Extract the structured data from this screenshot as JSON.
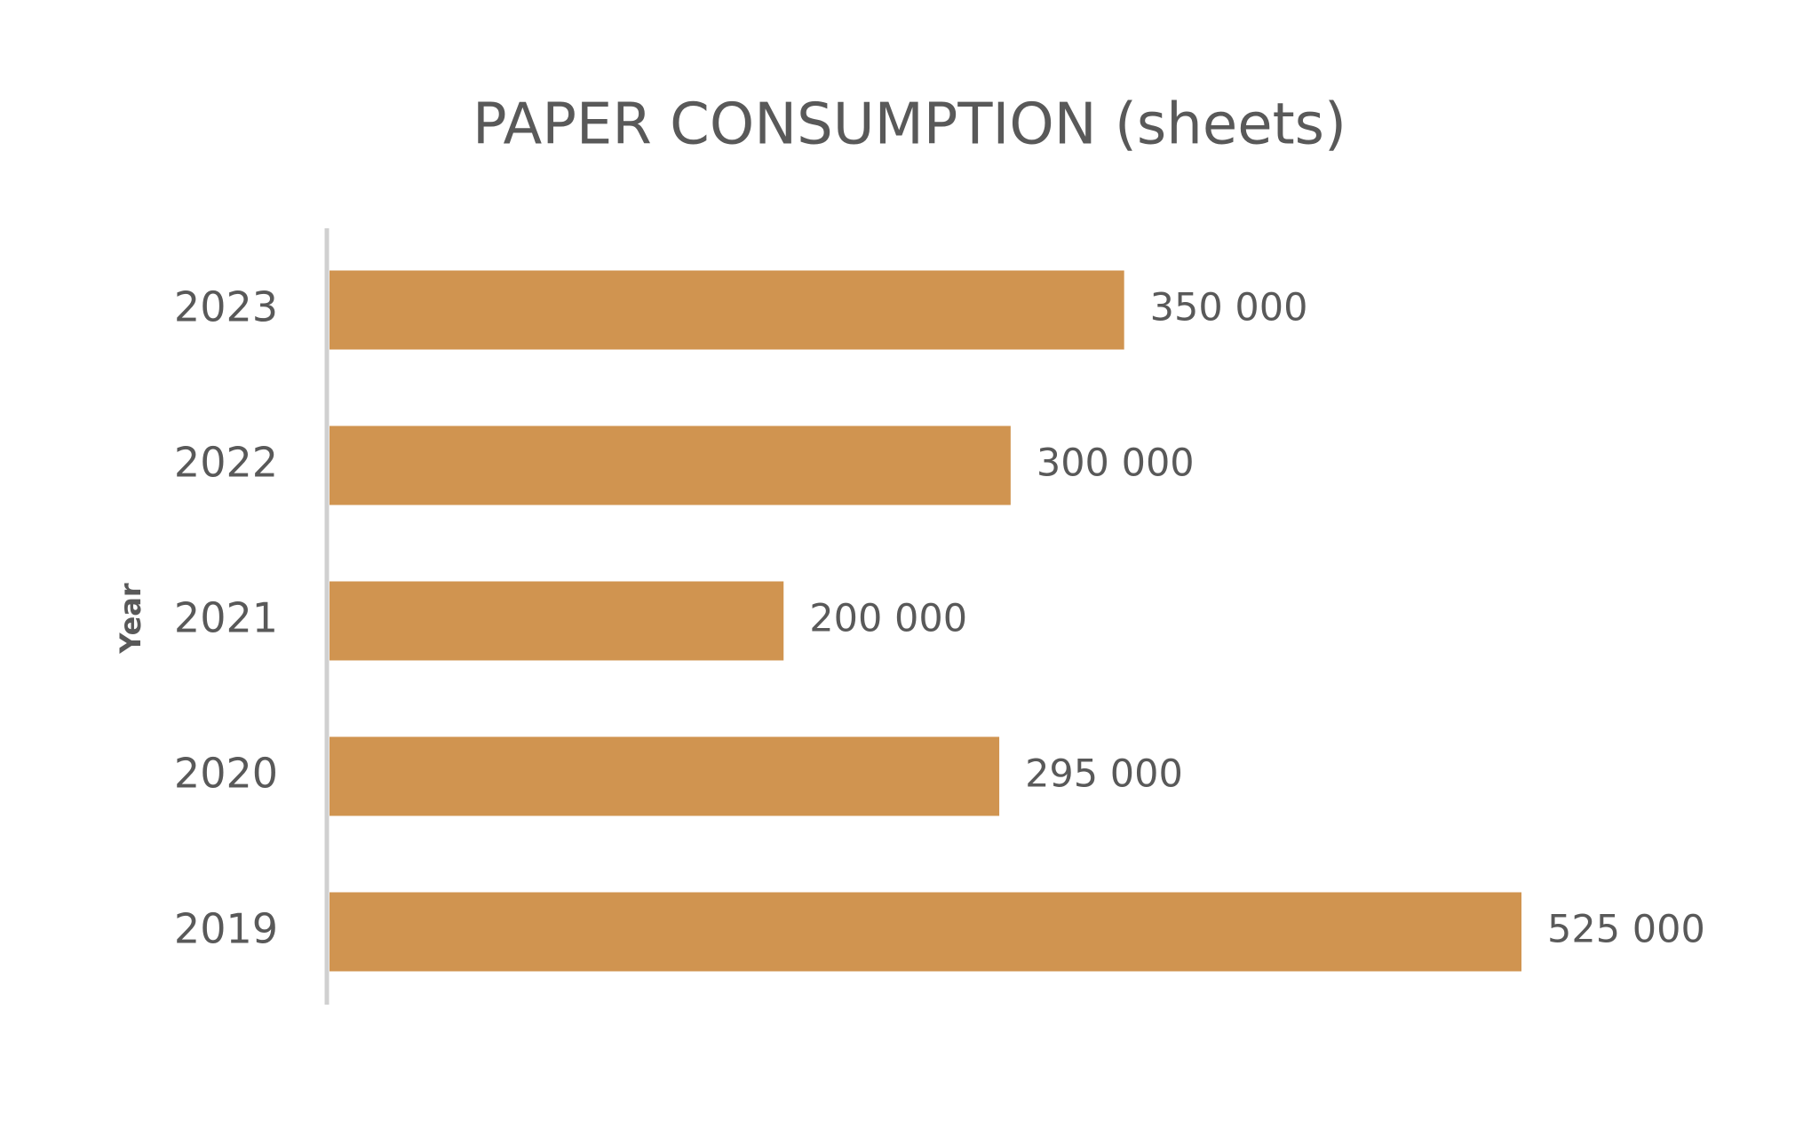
{
  "chart_data": {
    "type": "bar",
    "orientation": "horizontal",
    "title": "PAPER CONSUMPTION (sheets)",
    "y_axis_label": "Year",
    "categories": [
      "2023",
      "2022",
      "2021",
      "2020",
      "2019"
    ],
    "values": [
      350000,
      300000,
      200000,
      295000,
      525000
    ],
    "value_labels": [
      "350 000",
      "300 000",
      "200 000",
      "295 000",
      "525 000"
    ],
    "color": "#d09450"
  }
}
